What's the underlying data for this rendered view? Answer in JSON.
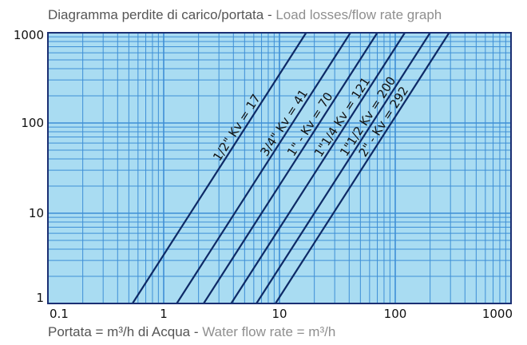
{
  "title": {
    "it": "Diagramma perdite di carico/portata",
    "sep": " - ",
    "en": "Load losses/flow rate graph"
  },
  "x_caption": {
    "it": "Portata = m³/h di Acqua",
    "sep": " - ",
    "en": "Water flow rate = m³/h"
  },
  "colors": {
    "plot_background": "#a9dcf2",
    "grid": "#3e8fd6",
    "line": "#0e2a66",
    "border": "#1a2f73"
  },
  "chart_data": {
    "type": "line",
    "x_scale": "log",
    "y_scale": "log",
    "xlim": [
      0.1,
      1000
    ],
    "ylim": [
      1,
      1000
    ],
    "x_ticks": [
      {
        "value": 0.1,
        "label": "0.1"
      },
      {
        "value": 1,
        "label": "1"
      },
      {
        "value": 10,
        "label": "10"
      },
      {
        "value": 100,
        "label": "100"
      },
      {
        "value": 1000,
        "label": "1000"
      }
    ],
    "y_ticks": [
      {
        "value": 1,
        "label": "1"
      },
      {
        "value": 10,
        "label": "10"
      },
      {
        "value": 100,
        "label": "100"
      },
      {
        "value": 1000,
        "label": "1000"
      }
    ],
    "grid": true,
    "series": [
      {
        "name": "1/2\" Kv = 17",
        "kv": 17,
        "label_at_x": 3.2
      },
      {
        "name": "3/4\" Kv = 41",
        "kv": 41,
        "label_at_x": 8.2
      },
      {
        "name": "1\" - Kv = 70",
        "kv": 70,
        "label_at_x": 14
      },
      {
        "name": "1\"1/4 Kv = 121",
        "kv": 121,
        "label_at_x": 24
      },
      {
        "name": "1\"1/2 Kv = 200",
        "kv": 200,
        "label_at_x": 40
      },
      {
        "name": "2\" - Kv = 292",
        "kv": 292,
        "label_at_x": 58
      }
    ]
  }
}
